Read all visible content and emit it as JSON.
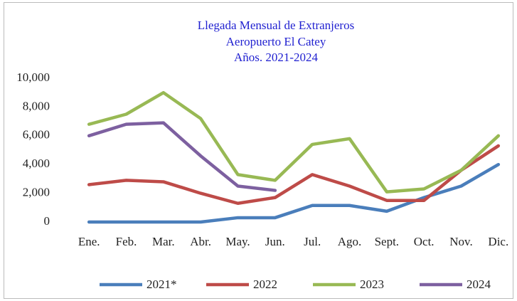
{
  "chart_data": {
    "type": "line",
    "title": [
      "Llegada Mensual de Extranjeros",
      "Aeropuerto El Catey",
      "Años. 2021-2024"
    ],
    "categories": [
      "Ene.",
      "Feb.",
      "Mar.",
      "Abr.",
      "May.",
      "Jun.",
      "Jul.",
      "Ago.",
      "Sept.",
      "Oct.",
      "Nov.",
      "Dic."
    ],
    "series": [
      {
        "name": "2021*",
        "color": "#4a7ebb",
        "values": [
          0,
          0,
          0,
          0,
          300,
          300,
          1150,
          1150,
          750,
          1700,
          2500,
          4000
        ]
      },
      {
        "name": "2022",
        "color": "#be4b48",
        "values": [
          2600,
          2900,
          2800,
          2000,
          1300,
          1700,
          3300,
          2500,
          1500,
          1500,
          3600,
          5300
        ]
      },
      {
        "name": "2023",
        "color": "#98b954",
        "values": [
          6800,
          7500,
          9000,
          7200,
          3300,
          2900,
          5400,
          5800,
          2100,
          2300,
          3600,
          6000
        ]
      },
      {
        "name": "2024",
        "color": "#7d60a0",
        "values": [
          6000,
          6800,
          6900,
          4600,
          2500,
          2200,
          null,
          null,
          null,
          null,
          null,
          null
        ]
      }
    ],
    "ylim": [
      0,
      10000
    ],
    "yticks": [
      0,
      {
        "value": 2000,
        "label": "2,000"
      },
      {
        "value": 4000,
        "label": "4,000"
      },
      {
        "value": 6000,
        "label": "6,000"
      },
      {
        "value": 8000,
        "label": "8,000"
      },
      {
        "value": 10000,
        "label": "10,000"
      }
    ],
    "grid": false,
    "legend": "bottom"
  }
}
